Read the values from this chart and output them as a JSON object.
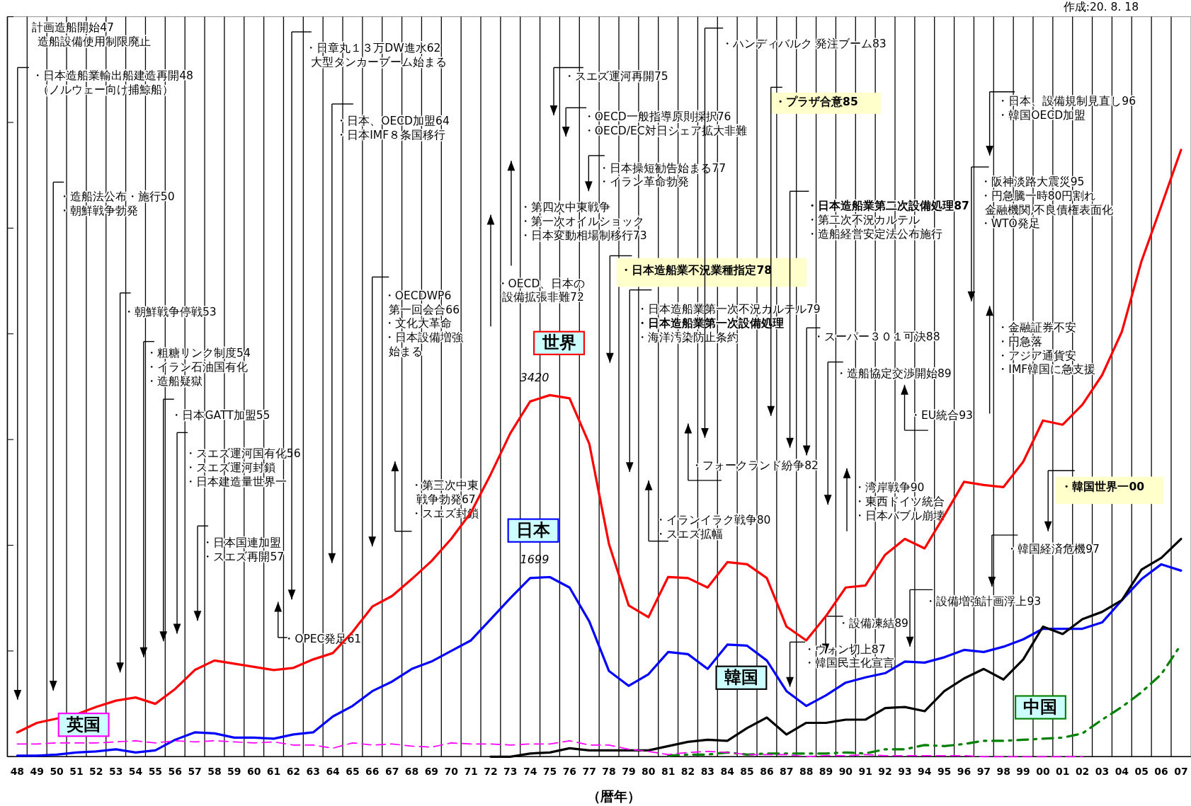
{
  "chart_data": {
    "type": "line",
    "categories": [
      "48",
      "49",
      "50",
      "51",
      "52",
      "53",
      "54",
      "55",
      "56",
      "57",
      "58",
      "59",
      "60",
      "61",
      "62",
      "63",
      "64",
      "65",
      "66",
      "67",
      "68",
      "69",
      "70",
      "71",
      "72",
      "73",
      "74",
      "75",
      "76",
      "77",
      "78",
      "79",
      "80",
      "81",
      "82",
      "83",
      "84",
      "85",
      "86",
      "87",
      "88",
      "89",
      "90",
      "91",
      "92",
      "93",
      "94",
      "95",
      "96",
      "97",
      "98",
      "99",
      "00",
      "01",
      "02",
      "03",
      "04",
      "05",
      "06",
      "07"
    ],
    "xlabel": "（暦年）",
    "ylim": [
      0,
      7000
    ],
    "yticks": [
      {
        "value": 0,
        "label": null
      },
      {
        "value": 1000,
        "label": null
      },
      {
        "value": 2000,
        "label": null
      },
      {
        "value": 3000,
        "label": null
      },
      {
        "value": 4000,
        "label": null
      },
      {
        "value": 5000,
        "label": null
      },
      {
        "value": 6000,
        "label": null
      },
      {
        "value": 7000,
        "label": null
      }
    ],
    "tick_labels": "x",
    "grid": "x",
    "marker": "none",
    "series": [
      {
        "name": "世界",
        "color": "#ff0000",
        "line_style": "solid",
        "values": [
          230,
          320,
          360,
          400,
          470,
          530,
          560,
          500,
          640,
          820,
          910,
          880,
          850,
          820,
          840,
          920,
          980,
          1180,
          1420,
          1520,
          1680,
          1850,
          2060,
          2310,
          2670,
          3060,
          3360,
          3420,
          3390,
          2960,
          2010,
          1430,
          1320,
          1700,
          1690,
          1600,
          1840,
          1820,
          1690,
          1230,
          1100,
          1330,
          1600,
          1620,
          1910,
          2060,
          1970,
          2280,
          2600,
          2570,
          2550,
          2790,
          3180,
          3140,
          3330,
          3610,
          4020,
          4690,
          5210,
          5740
        ],
        "value_labels": [
          null,
          null,
          null,
          null,
          null,
          null,
          null,
          null,
          null,
          null,
          null,
          null,
          null,
          null,
          null,
          null,
          null,
          null,
          null,
          null,
          null,
          null,
          null,
          null,
          null,
          null,
          null,
          "3420",
          null,
          null,
          null,
          null,
          null,
          null,
          null,
          null,
          null,
          null,
          null,
          null,
          null,
          null,
          null,
          null,
          null,
          null,
          null,
          null,
          null,
          null,
          null,
          null,
          null,
          null,
          null,
          null,
          null,
          null,
          null,
          null
        ]
      },
      {
        "name": "日本",
        "color": "#0000ff",
        "line_style": "solid",
        "values": [
          10,
          10,
          20,
          40,
          50,
          70,
          40,
          60,
          160,
          230,
          220,
          180,
          180,
          170,
          210,
          230,
          380,
          480,
          620,
          710,
          830,
          900,
          1000,
          1100,
          1300,
          1500,
          1690,
          1699,
          1600,
          1280,
          810,
          670,
          780,
          990,
          970,
          830,
          1060,
          1050,
          910,
          620,
          480,
          580,
          700,
          750,
          790,
          900,
          890,
          940,
          1010,
          990,
          1040,
          1110,
          1210,
          1210,
          1210,
          1270,
          1480,
          1680,
          1820,
          1760
        ],
        "value_labels": [
          null,
          null,
          null,
          null,
          null,
          null,
          null,
          null,
          null,
          null,
          null,
          null,
          null,
          null,
          null,
          null,
          null,
          null,
          null,
          null,
          null,
          null,
          null,
          null,
          null,
          null,
          null,
          "1699",
          null,
          null,
          null,
          null,
          null,
          null,
          null,
          null,
          null,
          null,
          null,
          null,
          null,
          null,
          null,
          null,
          null,
          null,
          null,
          null,
          null,
          null,
          null,
          null,
          null,
          null,
          null,
          null,
          null,
          null,
          null,
          null
        ]
      },
      {
        "name": "韓国",
        "color": "#000000",
        "line_style": "solid",
        "values": [
          null,
          null,
          null,
          null,
          null,
          null,
          null,
          null,
          null,
          null,
          null,
          null,
          null,
          null,
          null,
          null,
          null,
          null,
          null,
          null,
          null,
          null,
          null,
          null,
          0,
          0,
          30,
          40,
          80,
          60,
          60,
          60,
          60,
          100,
          140,
          160,
          150,
          270,
          370,
          210,
          320,
          320,
          350,
          350,
          460,
          470,
          430,
          620,
          740,
          830,
          730,
          920,
          1230,
          1160,
          1300,
          1370,
          1480,
          1770,
          1880,
          2060
        ]
      },
      {
        "name": "中国",
        "color": "#008000",
        "line_style": "dashed",
        "values": [
          null,
          null,
          null,
          null,
          null,
          null,
          null,
          null,
          null,
          null,
          null,
          null,
          null,
          null,
          null,
          null,
          null,
          null,
          null,
          null,
          null,
          null,
          null,
          null,
          null,
          null,
          null,
          null,
          null,
          null,
          null,
          null,
          null,
          10,
          20,
          20,
          40,
          20,
          30,
          30,
          30,
          30,
          40,
          30,
          70,
          70,
          110,
          100,
          120,
          150,
          150,
          160,
          170,
          180,
          220,
          350,
          470,
          610,
          780,
          1060
        ]
      },
      {
        "name": "英国",
        "color": "#ff00ff",
        "line_style": "dashed",
        "values": [
          120,
          120,
          130,
          130,
          130,
          140,
          150,
          130,
          150,
          140,
          150,
          140,
          130,
          140,
          110,
          110,
          80,
          130,
          110,
          120,
          100,
          90,
          130,
          120,
          120,
          110,
          120,
          120,
          150,
          110,
          110,
          70,
          50,
          20,
          40,
          50,
          40,
          20,
          20,
          20,
          0,
          10,
          10,
          20,
          10,
          10,
          10,
          10,
          10,
          0,
          0,
          0,
          0,
          0,
          0,
          null,
          null,
          null,
          null,
          null
        ]
      }
    ],
    "annotations": [
      "計画造船開始47",
      "造船設備使用制限廃止",
      "・日本造船業輸出船建造再開48",
      "（ノルウェー向け捕鯨船）",
      "・造船法公布・施行50",
      "・朝鮮戦争勃発",
      "・朝鮮戦争停戦53",
      "・粗糖リンク制度54",
      "・イラン石油国有化",
      "・造船疑獄",
      "・日本GATT加盟55",
      "・スエズ運河国有化56",
      "・スエズ運河封鎖",
      "・日本建造量世界一",
      "・日本国連加盟",
      "・スエズ再開57",
      "・OPEC発足61",
      "・日章丸１３万DW進水62",
      "大型タンカーブーム始まる",
      "・日本、OECD加盟64",
      "・日本IMF８条国移行",
      "・OECDWP6",
      "第一回会合66",
      "・文化大革命",
      "・日本設備増強",
      "始まる",
      "・第三次中東",
      "戦争勃発67",
      "・スエズ封鎖",
      "・OECD、日本の",
      "設備拡張非難72",
      "・第四次中東戦争",
      "・第一次オイルショック",
      "・日本変動相場制移行73",
      "・スエズ運河再開75",
      "・OECD一般指導原則採択76",
      "・OECD/EC対日シェア拡大非難",
      "・日本操短勧告始まる77",
      "・イラン革命勃発",
      "・日本造船業不況業種指定78",
      "・日本造船業第一次不況カルテル79",
      "・日本造船業第一次設備処理",
      "・海洋汚染防止条約",
      "・イランイラク戦争80",
      "・スエズ拡幅",
      "・フォークランド紛争82",
      "・ハンディバルク 発注ブーム83",
      "・プラザ合意85",
      "・日本造船業第二次設備処理87",
      "・第二次不況カルテル",
      "・造船経営安定法公布施行",
      "・スーパー３０１可決88",
      "・造船協定交渉開始89",
      "・湾岸戦争90",
      "・東西ドイツ統合",
      "・日本バブル崩壊",
      "・EU統合93",
      "・阪神淡路大震災95",
      "・円急騰一時80円割れ",
      "金融機関,不良債権表面化",
      "・WTO発足",
      "・日本、設備規制見直し96",
      "・韓国OECD加盟",
      "・金融証券不安",
      "・円急落",
      "・アジア通貨安",
      "・IMF韓国に急支援",
      "・韓国世界一00",
      "・韓国経済危機97",
      "・設備増強計画浮上93",
      "・設備凍結89",
      "・ウォン切上87",
      "・韓国民主化宣言",
      "作成:20. 8. 18"
    ]
  }
}
